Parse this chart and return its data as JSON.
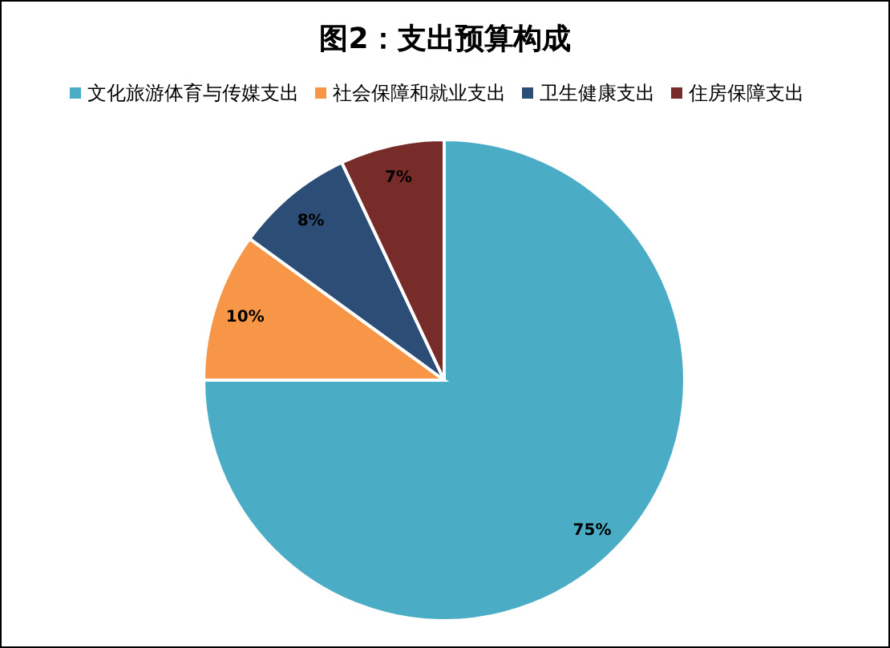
{
  "chart_data": {
    "type": "pie",
    "title": "图2：支出预算构成",
    "categories": [
      "文化旅游体育与传媒支出",
      "社会保障和就业支出",
      "卫生健康支出",
      "住房保障支出"
    ],
    "values": [
      75,
      10,
      8,
      7
    ],
    "colors": [
      "#4bacc6",
      "#f79646",
      "#2c4d75",
      "#772c2a"
    ],
    "value_labels": [
      "75%",
      "10%",
      "8%",
      "7%"
    ],
    "legend": "top"
  }
}
